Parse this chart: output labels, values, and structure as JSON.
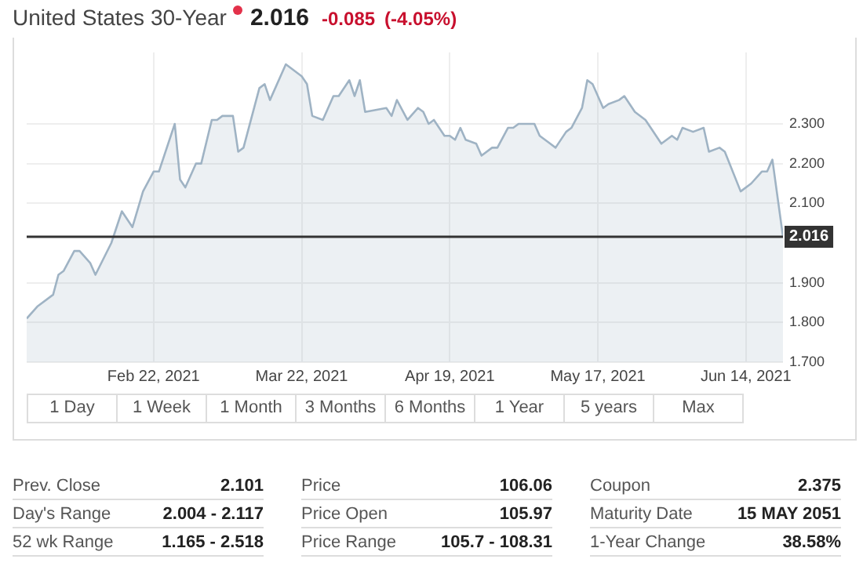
{
  "chart_data": {
    "type": "area",
    "title": "United States 30-Year",
    "annotations": [
      "2.016",
      "-0.085",
      "(-4.05%)",
      "1 Day",
      "1 Week",
      "1 Month",
      "3 Months",
      "6 Months",
      "1 Year",
      "5 years",
      "Max",
      "Prev. Close",
      "2.101",
      "Day's Range",
      "2.004 - 2.117",
      "52 wk Range",
      "1.165 - 2.518",
      "Price",
      "106.06",
      "Price Open",
      "105.97",
      "Price Range",
      "105.7 - 108.31",
      "Coupon",
      "2.375",
      "Maturity Date",
      "15 MAY 2051",
      "1-Year Change",
      "38.58%"
    ],
    "x": [
      "2021-01-29",
      "2021-01-31",
      "2021-02-03",
      "2021-02-04",
      "2021-02-05",
      "2021-02-07",
      "2021-02-08",
      "2021-02-10",
      "2021-02-11",
      "2021-02-14",
      "2021-02-16",
      "2021-02-18",
      "2021-02-20",
      "2021-02-22",
      "2021-02-23",
      "2021-02-26",
      "2021-02-27",
      "2021-02-28",
      "2021-03-02",
      "2021-03-03",
      "2021-03-05",
      "2021-03-06",
      "2021-03-07",
      "2021-03-09",
      "2021-03-10",
      "2021-03-11",
      "2021-03-14",
      "2021-03-15",
      "2021-03-16",
      "2021-03-19",
      "2021-03-22",
      "2021-03-23",
      "2021-03-24",
      "2021-03-26",
      "2021-03-28",
      "2021-03-29",
      "2021-03-31",
      "2021-04-01",
      "2021-04-02",
      "2021-04-03",
      "2021-04-07",
      "2021-04-08",
      "2021-04-09",
      "2021-04-11",
      "2021-04-13",
      "2021-04-14",
      "2021-04-15",
      "2021-04-16",
      "2021-04-18",
      "2021-04-19",
      "2021-04-20",
      "2021-04-21",
      "2021-04-22",
      "2021-04-24",
      "2021-04-25",
      "2021-04-27",
      "2021-04-28",
      "2021-04-30",
      "2021-05-01",
      "2021-05-02",
      "2021-05-05",
      "2021-05-06",
      "2021-05-08",
      "2021-05-09",
      "2021-05-11",
      "2021-05-12",
      "2021-05-14",
      "2021-05-15",
      "2021-05-16",
      "2021-05-18",
      "2021-05-19",
      "2021-05-21",
      "2021-05-22",
      "2021-05-24",
      "2021-05-26",
      "2021-05-27",
      "2021-05-29",
      "2021-05-31",
      "2021-06-01",
      "2021-06-02",
      "2021-06-04",
      "2021-06-06",
      "2021-06-07",
      "2021-06-09",
      "2021-06-10",
      "2021-06-13",
      "2021-06-15",
      "2021-06-17",
      "2021-06-18",
      "2021-06-19",
      "2021-06-21"
    ],
    "series": [
      {
        "color": "#9fb3c4",
        "values": [
          1.81,
          1.84,
          1.87,
          1.92,
          1.93,
          1.98,
          1.98,
          1.95,
          1.92,
          2.0,
          2.08,
          2.04,
          2.13,
          2.18,
          2.18,
          2.3,
          2.16,
          2.14,
          2.2,
          2.2,
          2.31,
          2.31,
          2.32,
          2.32,
          2.23,
          2.24,
          2.39,
          2.4,
          2.36,
          2.45,
          2.42,
          2.4,
          2.32,
          2.31,
          2.37,
          2.37,
          2.41,
          2.37,
          2.41,
          2.33,
          2.34,
          2.32,
          2.36,
          2.31,
          2.34,
          2.33,
          2.3,
          2.31,
          2.27,
          2.27,
          2.26,
          2.29,
          2.26,
          2.25,
          2.22,
          2.24,
          2.24,
          2.29,
          2.29,
          2.3,
          2.3,
          2.27,
          2.25,
          2.24,
          2.28,
          2.29,
          2.34,
          2.41,
          2.4,
          2.34,
          2.35,
          2.36,
          2.37,
          2.33,
          2.31,
          2.29,
          2.25,
          2.27,
          2.26,
          2.29,
          2.28,
          2.29,
          2.23,
          2.24,
          2.23,
          2.13,
          2.15,
          2.18,
          2.18,
          2.21,
          2.016
        ]
      }
    ],
    "xlim": [
      "2021-01-29",
      "2021-06-21"
    ],
    "xticks": [
      {
        "value": "2021-02-22",
        "label": "Feb 22, 2021"
      },
      {
        "value": "2021-03-22",
        "label": "Mar 22, 2021"
      },
      {
        "value": "2021-04-19",
        "label": "Apr 19, 2021"
      },
      {
        "value": "2021-05-17",
        "label": "May 17, 2021"
      },
      {
        "value": "2021-06-14",
        "label": "Jun 14, 2021"
      }
    ],
    "ylim": [
      1.7,
      2.48
    ],
    "yticks": [
      {
        "value": 1.7,
        "label": "1.700"
      },
      {
        "value": 1.8,
        "label": "1.800"
      },
      {
        "value": 1.9,
        "label": "1.900"
      },
      {
        "value": 2.1,
        "label": "2.100"
      },
      {
        "value": 2.2,
        "label": "2.200"
      },
      {
        "value": 2.3,
        "label": "2.300"
      }
    ],
    "ref_lines": [
      {
        "axis": "y",
        "value": 2.016,
        "label": "2.016",
        "color": "#333333"
      }
    ],
    "grid": true,
    "legend": false,
    "marker": "none",
    "line_style": "solid"
  }
}
